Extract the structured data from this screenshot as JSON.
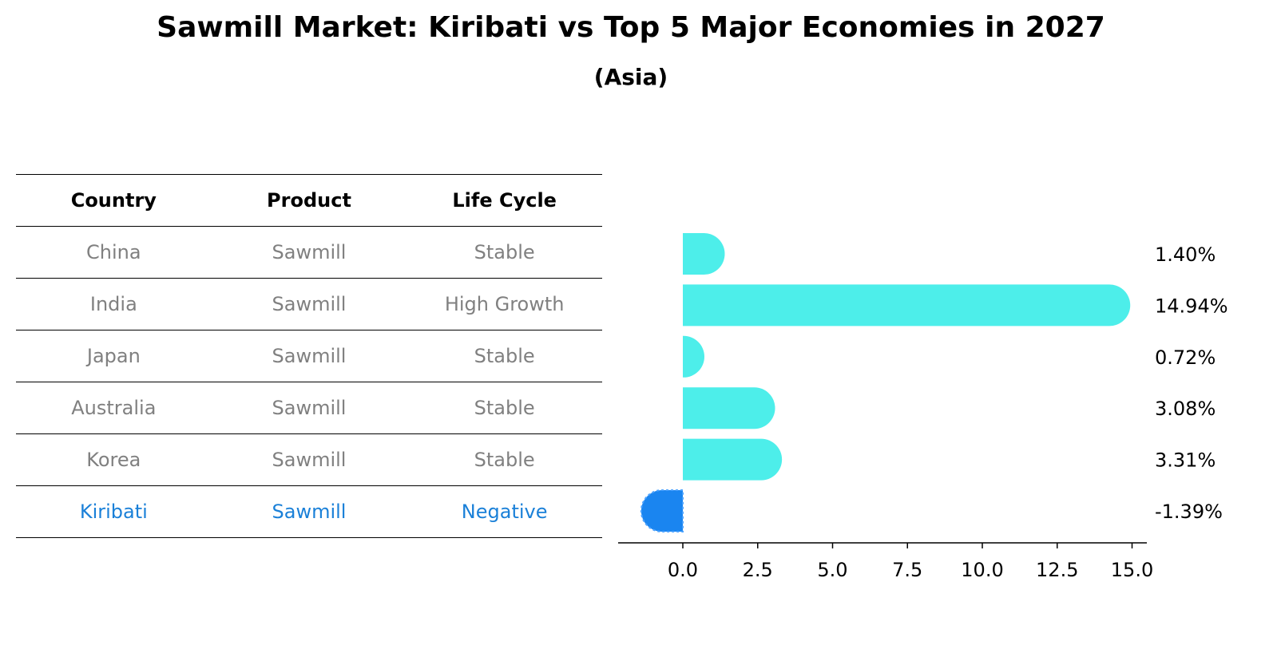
{
  "chart_data": {
    "type": "bar",
    "orientation": "horizontal",
    "title": "Sawmill Market: Kiribati vs Top 5 Major Economies in 2027",
    "subtitle": "(Asia)",
    "table": {
      "headers": [
        "Country",
        "Product",
        "Life Cycle"
      ],
      "rows": [
        [
          "China",
          "Sawmill",
          "Stable"
        ],
        [
          "India",
          "Sawmill",
          "High Growth"
        ],
        [
          "Japan",
          "Sawmill",
          "Stable"
        ],
        [
          "Australia",
          "Sawmill",
          "Stable"
        ],
        [
          "Korea",
          "Sawmill",
          "Stable"
        ],
        [
          "Kiribati",
          "Sawmill",
          "Negative"
        ]
      ],
      "highlight_row": 5
    },
    "categories": [
      "China",
      "India",
      "Japan",
      "Australia",
      "Korea",
      "Kiribati"
    ],
    "values": [
      1.4,
      14.94,
      0.72,
      3.08,
      3.31,
      -1.39
    ],
    "value_labels": [
      "1.40%",
      "14.94%",
      "0.72%",
      "3.08%",
      "3.31%",
      "-1.39%"
    ],
    "xlim": [
      -2.2,
      15.8
    ],
    "xticks": [
      0.0,
      2.5,
      5.0,
      7.5,
      10.0,
      12.5,
      15.0
    ],
    "xtick_labels": [
      "0.0",
      "2.5",
      "5.0",
      "7.5",
      "10.0",
      "12.5",
      "15.0"
    ],
    "colors": {
      "bar": "#4deeea",
      "highlight_bar": "#1a85f0",
      "highlight_text": "#1a80d8",
      "muted_text": "#808080"
    },
    "xlabel": "",
    "ylabel": "",
    "grid": false
  }
}
